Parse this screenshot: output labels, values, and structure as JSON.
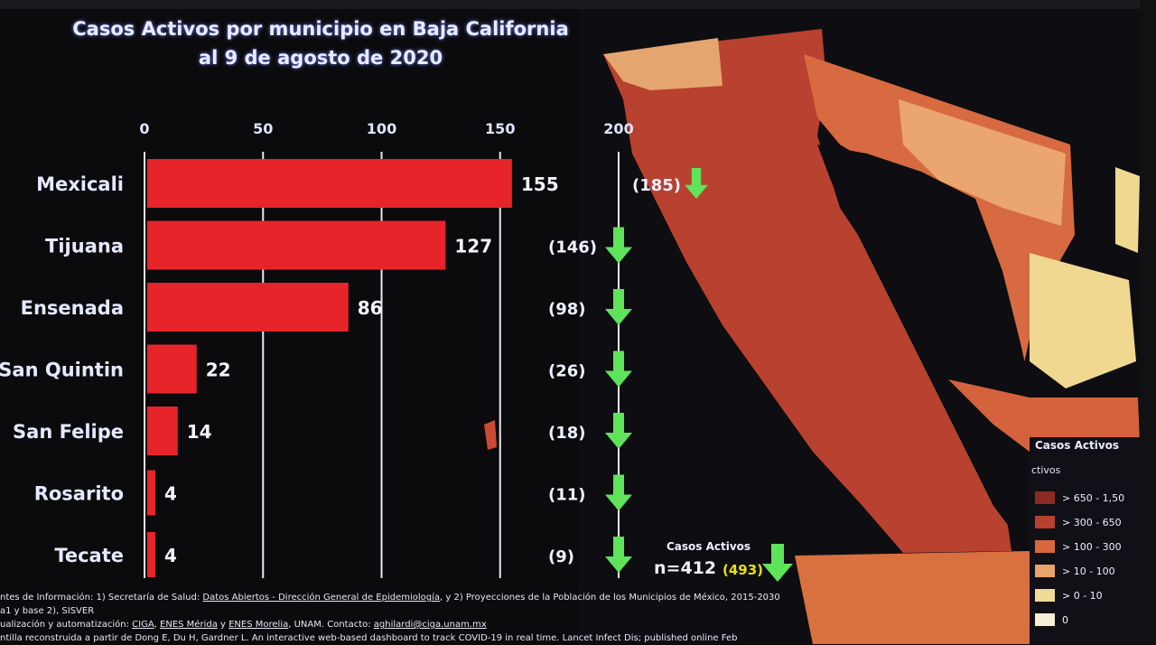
{
  "chart_data": {
    "type": "bar",
    "orientation": "horizontal",
    "title": "Casos Activos por municipio en Baja California",
    "subtitle": "al 9 de agosto de 2020",
    "categories": [
      "Mexicali",
      "Tijuana",
      "Ensenada",
      "San Quintin",
      "San Felipe",
      "Rosarito",
      "Tecate"
    ],
    "values": [
      155,
      127,
      86,
      22,
      14,
      4,
      4
    ],
    "previous_values": [
      "(185)",
      "(146)",
      "(98)",
      "(26)",
      "(18)",
      "(11)",
      "(9)"
    ],
    "xlim": [
      0,
      200
    ],
    "xticks": [
      0,
      50,
      100,
      150,
      200
    ],
    "grid": true,
    "bar_color": "#e8242b",
    "arrow_color": "#5fe35a"
  },
  "total": {
    "title": "Casos Activos",
    "value": "n=412",
    "previous": "(493)"
  },
  "legend": {
    "title": "Casos Activos",
    "subtitle": "ctivos",
    "items": [
      {
        "label": "> 650 - 1,50",
        "color": "#8c2a22"
      },
      {
        "label": "> 300 - 650",
        "color": "#b6402e"
      },
      {
        "label": "> 100 - 300",
        "color": "#d9683f"
      },
      {
        "label": "> 10 - 100",
        "color": "#e9a36b"
      },
      {
        "label": "> 0 - 10",
        "color": "#f1dc96"
      },
      {
        "label": "0",
        "color": "#f6f0d4"
      }
    ]
  },
  "footer": {
    "line1_a": "ntes de Información: 1) Secretaría de Salud: ",
    "line1_b": "Datos Abiertos - Dirección General de Epidemiología",
    "line1_c": ", y 2) Proyecciones de la Población de los Municipios de México, 2015-2030",
    "line2": "a1 y base 2), SISVER",
    "line3_a": "ualización y automatización: ",
    "line3_b": "CIGA",
    "line3_c": ", ",
    "line3_d": "ENES Mérida",
    "line3_e": " y ",
    "line3_f": "ENES Morelia",
    "line3_g": ", UNAM. Contacto: ",
    "line3_h": "aghilardi@ciga.unam.mx",
    "line4": "ntilla reconstruida a partir de Dong E, Du H, Gardner L. An interactive web-based dashboard to track COVID-19 in real time. Lancet Infect Dis; published online Feb"
  }
}
